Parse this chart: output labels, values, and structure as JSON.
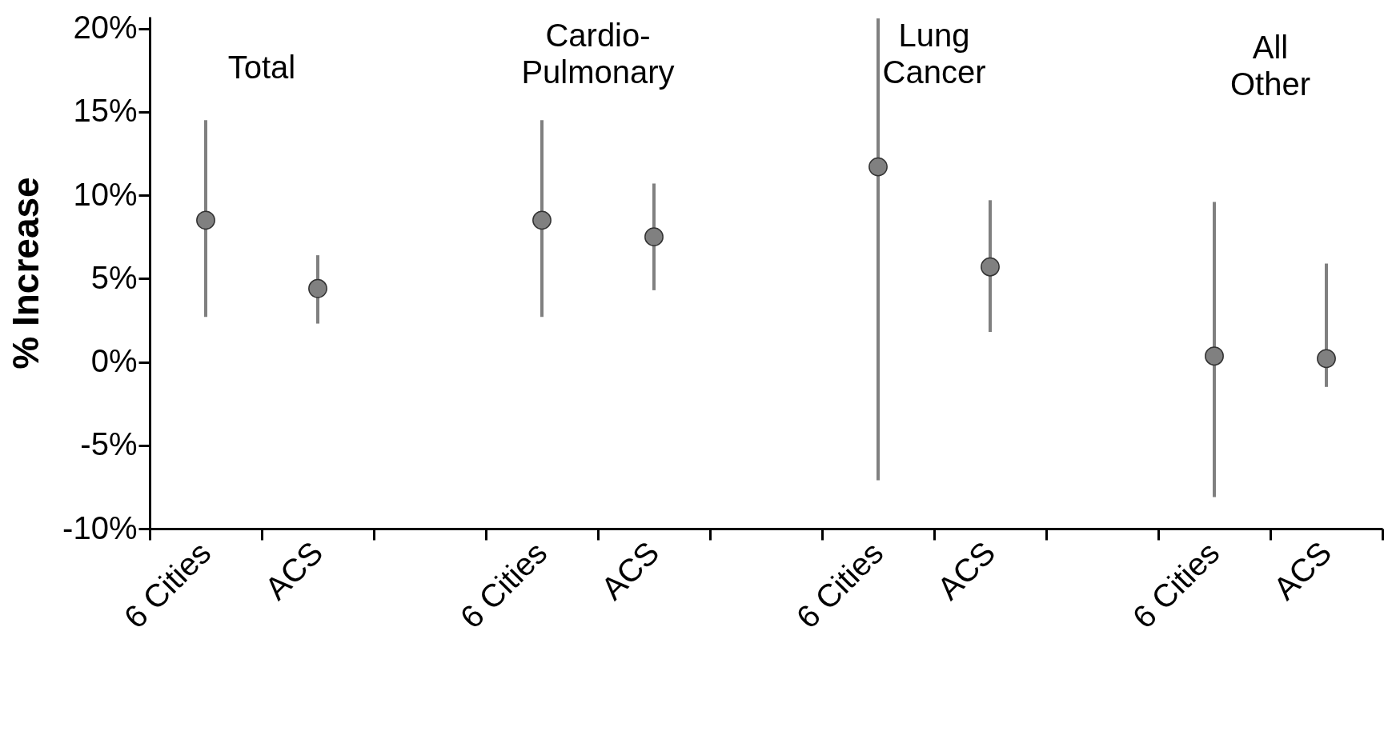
{
  "chart_data": {
    "type": "scatter",
    "ylabel": "% Increase",
    "categories": [
      "6 Cities",
      "ACS",
      null,
      "6 Cities",
      "ACS",
      null,
      "6 Cities",
      "ACS",
      null,
      "6 Cities",
      "ACS"
    ],
    "series": [
      {
        "color": "#808080",
        "values": [
          8.5,
          4.4,
          null,
          8.5,
          7.5,
          null,
          11.7,
          5.7,
          null,
          0.35,
          0.2
        ],
        "errors": [
          [
            2.7,
            14.5
          ],
          [
            2.3,
            6.4
          ],
          null,
          [
            2.7,
            14.5
          ],
          [
            4.3,
            10.7
          ],
          null,
          [
            -7.1,
            20.6
          ],
          [
            1.8,
            9.7
          ],
          null,
          [
            -8.1,
            9.6
          ],
          [
            -1.5,
            5.9
          ]
        ]
      }
    ],
    "ylim": [
      -10,
      20.7
    ],
    "yticks": [
      {
        "value": -10,
        "label": "-10%"
      },
      {
        "value": -5,
        "label": "-5%"
      },
      {
        "value": 0,
        "label": "0%"
      },
      {
        "value": 5,
        "label": "5%"
      },
      {
        "value": 10,
        "label": "10%"
      },
      {
        "value": 15,
        "label": "15%"
      },
      {
        "value": 20,
        "label": "20%"
      }
    ],
    "annotations": [
      "Total",
      "Cardio- Pulmonary",
      "Lung Cancer",
      "All Other"
    ],
    "marker": "circle",
    "grid": false,
    "legend": false
  }
}
